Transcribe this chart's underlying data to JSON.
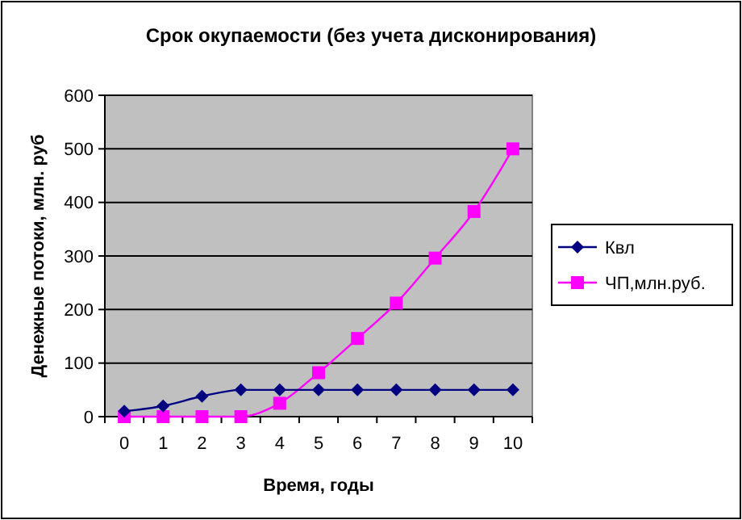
{
  "chart_data": {
    "type": "line",
    "title": "Срок окупаемости (без учета дисконирования)",
    "xlabel": "Время, годы",
    "ylabel": "Денежные потоки, млн. руб",
    "categories": [
      "0",
      "1",
      "2",
      "3",
      "4",
      "5",
      "6",
      "7",
      "8",
      "9",
      "10"
    ],
    "series": [
      {
        "name": "Квл",
        "color": "#000080",
        "marker": "diamond",
        "values": [
          10,
          20,
          38,
          50,
          50,
          50,
          50,
          50,
          50,
          50,
          50
        ]
      },
      {
        "name": "ЧП,млн.руб.",
        "color": "#ff00ff",
        "marker": "square",
        "values": [
          0,
          0,
          0,
          0,
          25,
          82,
          146,
          212,
          296,
          383,
          500
        ]
      }
    ],
    "ylim": [
      0,
      600
    ],
    "yticks": [
      0,
      100,
      200,
      300,
      400,
      500,
      600
    ],
    "grid": "y",
    "legend": "right"
  }
}
